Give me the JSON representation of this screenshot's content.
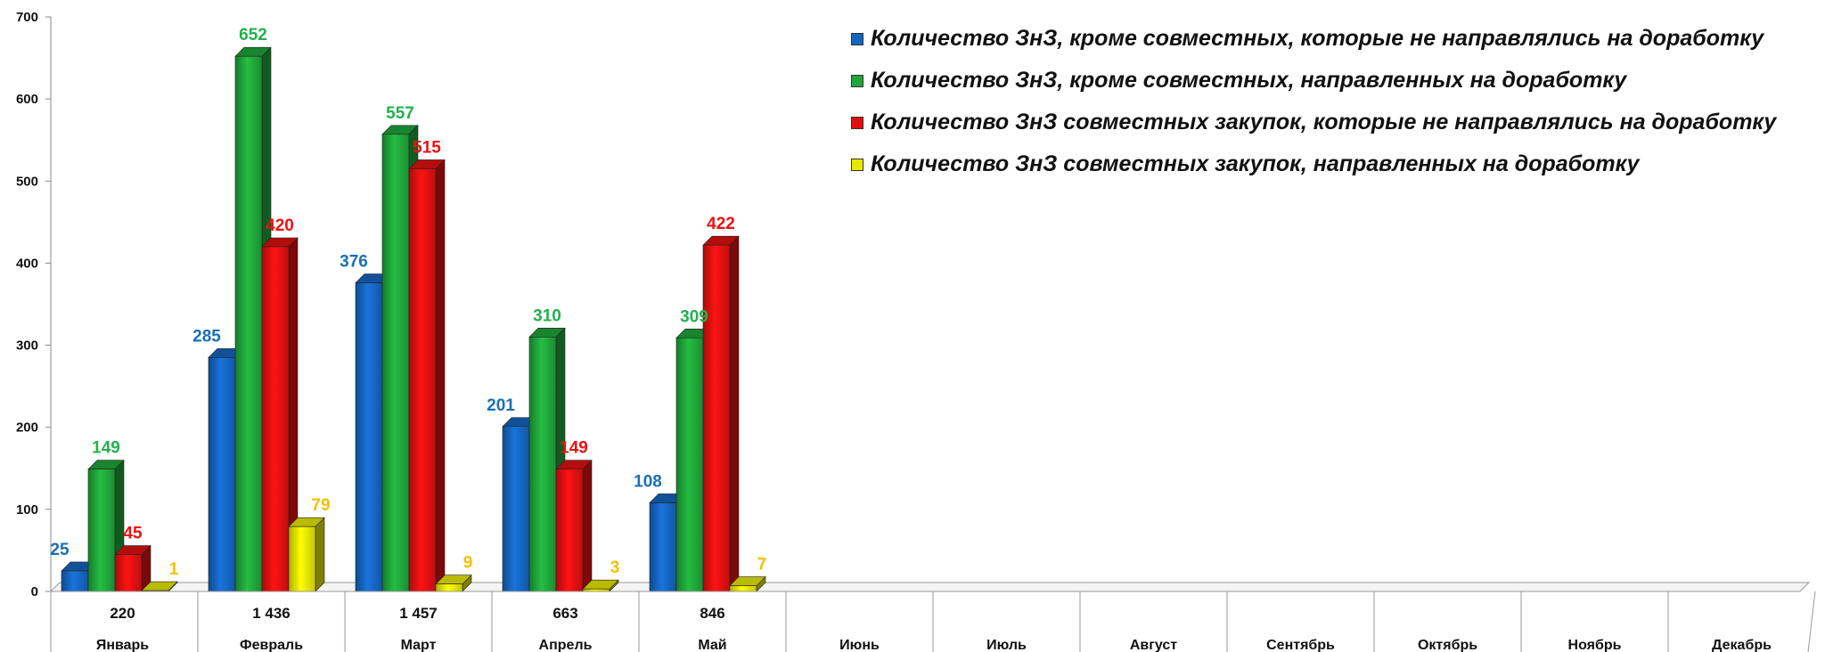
{
  "chart_data": {
    "type": "bar",
    "categories": [
      "Январь",
      "Февраль",
      "Март",
      "Апрель",
      "Май",
      "Июнь",
      "Июль",
      "Август",
      "Сентябрь",
      "Октябрь",
      "Ноябрь",
      "Декабрь"
    ],
    "totals": [
      "220",
      "1 436",
      "1 457",
      "663",
      "846",
      "",
      "",
      "",
      "",
      "",
      "",
      ""
    ],
    "series": [
      {
        "name": "Количество ЗнЗ, кроме совместных, которые не направлялись на доработку",
        "color": "#1565c0",
        "label_color": "#1a6fb5",
        "values": [
          25,
          285,
          376,
          201,
          108,
          null,
          null,
          null,
          null,
          null,
          null,
          null
        ]
      },
      {
        "name": "Количество ЗнЗ, кроме совместных, направленных на доработку",
        "color": "#1fa53a",
        "label_color": "#22b24c",
        "values": [
          149,
          652,
          557,
          310,
          309,
          null,
          null,
          null,
          null,
          null,
          null,
          null
        ]
      },
      {
        "name": "Количество ЗнЗ совместных закупок, которые не направлялись на доработку",
        "color": "#e01010",
        "label_color": "#ee1111",
        "values": [
          45,
          420,
          515,
          149,
          422,
          null,
          null,
          null,
          null,
          null,
          null,
          null
        ]
      },
      {
        "name": "Количество ЗнЗ совместных закупок, направленных на доработку",
        "color": "#e8e800",
        "label_color": "#f2c200",
        "values": [
          1,
          79,
          9,
          3,
          7,
          null,
          null,
          null,
          null,
          null,
          null,
          null
        ]
      }
    ],
    "ylim": [
      0,
      700
    ],
    "yticks": [
      0,
      100,
      200,
      300,
      400,
      500,
      600,
      700
    ],
    "grid": false,
    "legend_position": "top-right"
  }
}
